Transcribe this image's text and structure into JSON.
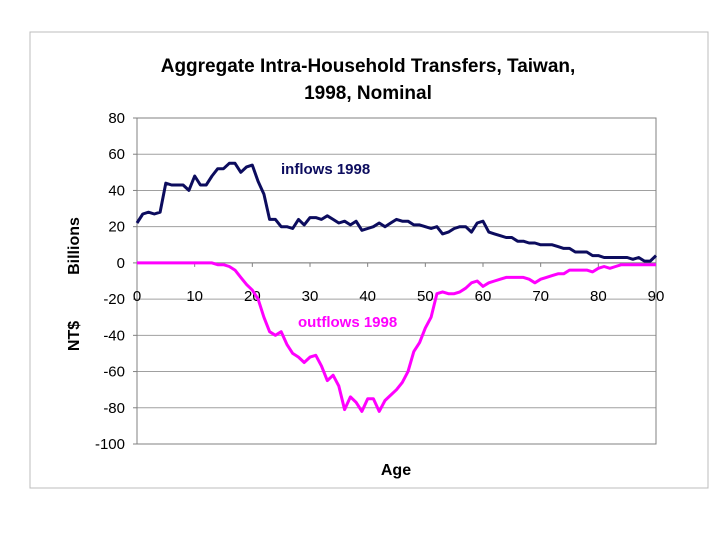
{
  "chart_data": {
    "type": "line",
    "title_lines": [
      "Aggregate Intra-Household Transfers, Taiwan,",
      "1998, Nominal"
    ],
    "xlabel": "Age",
    "ylabel_upper": "Billions",
    "ylabel_lower": "NT$",
    "xlim": [
      0,
      90
    ],
    "ylim": [
      -100,
      80
    ],
    "xticks": [
      0,
      10,
      20,
      30,
      40,
      50,
      60,
      70,
      80,
      90
    ],
    "yticks": [
      80,
      60,
      40,
      20,
      0,
      -20,
      -40,
      -60,
      -80,
      -100
    ],
    "grid": true,
    "series": [
      {
        "name": "inflows 1998",
        "color": "#0c0c5e",
        "x": [
          0,
          1,
          2,
          3,
          4,
          5,
          6,
          7,
          8,
          9,
          10,
          11,
          12,
          13,
          14,
          15,
          16,
          17,
          18,
          19,
          20,
          21,
          22,
          23,
          24,
          25,
          26,
          27,
          28,
          29,
          30,
          31,
          32,
          33,
          34,
          35,
          36,
          37,
          38,
          39,
          40,
          41,
          42,
          43,
          44,
          45,
          46,
          47,
          48,
          49,
          50,
          51,
          52,
          53,
          54,
          55,
          56,
          57,
          58,
          59,
          60,
          61,
          62,
          63,
          64,
          65,
          66,
          67,
          68,
          69,
          70,
          71,
          72,
          73,
          74,
          75,
          76,
          77,
          78,
          79,
          80,
          81,
          82,
          83,
          84,
          85,
          86,
          87,
          88,
          89,
          90
        ],
        "values": [
          22,
          27,
          28,
          27,
          28,
          44,
          43,
          43,
          43,
          40,
          48,
          43,
          43,
          48,
          52,
          52,
          55,
          55,
          50,
          53,
          54,
          45,
          38,
          24,
          24,
          20,
          20,
          19,
          24,
          21,
          25,
          25,
          24,
          26,
          24,
          22,
          23,
          21,
          23,
          18,
          19,
          20,
          22,
          20,
          22,
          24,
          23,
          23,
          21,
          21,
          20,
          19,
          20,
          16,
          17,
          19,
          20,
          20,
          17,
          22,
          23,
          17,
          16,
          15,
          14,
          14,
          12,
          12,
          11,
          11,
          10,
          10,
          10,
          9,
          8,
          8,
          6,
          6,
          6,
          4,
          4,
          3,
          3,
          3,
          3,
          3,
          2,
          3,
          1,
          1,
          4
        ]
      },
      {
        "name": "outflows 1998",
        "color": "#ff00ff",
        "x": [
          0,
          1,
          2,
          3,
          4,
          5,
          6,
          7,
          8,
          9,
          10,
          11,
          12,
          13,
          14,
          15,
          16,
          17,
          18,
          19,
          20,
          21,
          22,
          23,
          24,
          25,
          26,
          27,
          28,
          29,
          30,
          31,
          32,
          33,
          34,
          35,
          36,
          37,
          38,
          39,
          40,
          41,
          42,
          43,
          44,
          45,
          46,
          47,
          48,
          49,
          50,
          51,
          52,
          53,
          54,
          55,
          56,
          57,
          58,
          59,
          60,
          61,
          62,
          63,
          64,
          65,
          66,
          67,
          68,
          69,
          70,
          71,
          72,
          73,
          74,
          75,
          76,
          77,
          78,
          79,
          80,
          81,
          82,
          83,
          84,
          85,
          86,
          87,
          88,
          89,
          90
        ],
        "values": [
          0,
          0,
          0,
          0,
          0,
          0,
          0,
          0,
          0,
          0,
          0,
          0,
          0,
          0,
          -1,
          -1,
          -2,
          -4,
          -8,
          -12,
          -15,
          -20,
          -30,
          -38,
          -40,
          -38,
          -45,
          -50,
          -52,
          -55,
          -52,
          -51,
          -57,
          -65,
          -62,
          -68,
          -81,
          -74,
          -77,
          -82,
          -75,
          -75,
          -82,
          -76,
          -73,
          -70,
          -66,
          -60,
          -49,
          -44,
          -36,
          -30,
          -17,
          -16,
          -17,
          -17,
          -16,
          -14,
          -11,
          -10,
          -13,
          -11,
          -10,
          -9,
          -8,
          -8,
          -8,
          -8,
          -9,
          -11,
          -9,
          -8,
          -7,
          -6,
          -6,
          -4,
          -4,
          -4,
          -4,
          -5,
          -3,
          -2,
          -3,
          -2,
          -1,
          -1,
          -1,
          -1,
          -1,
          -1,
          -1
        ]
      }
    ]
  }
}
